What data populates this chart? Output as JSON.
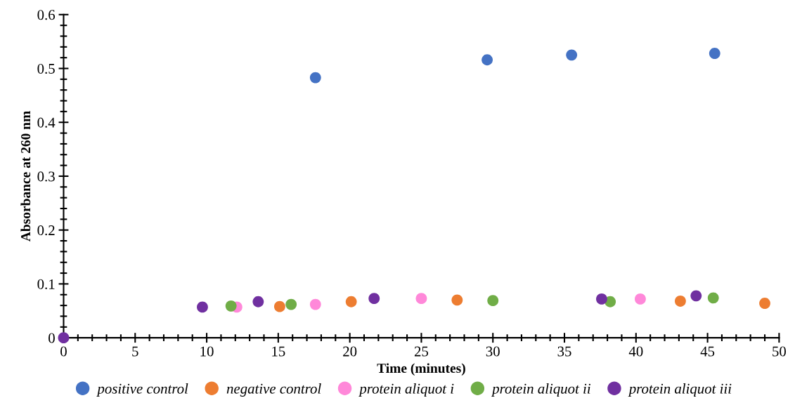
{
  "chart_data": {
    "type": "scatter",
    "xlabel": "Time (minutes)",
    "ylabel": "Absorbance at 260 nm",
    "xlim": [
      0,
      50
    ],
    "xticks": [
      0,
      5,
      10,
      15,
      20,
      25,
      30,
      35,
      40,
      45,
      50
    ],
    "ylim": [
      0,
      0.6
    ],
    "yticks": [
      0,
      0.1,
      0.2,
      0.3,
      0.4,
      0.5,
      0.6
    ],
    "grid": false,
    "legend": "bottom",
    "marker": "circle",
    "series": [
      {
        "name": "positive control",
        "color": "#4472c4",
        "x": [
          17.6,
          29.6,
          35.5,
          45.5
        ],
        "values": [
          0.483,
          0.516,
          0.525,
          0.528
        ]
      },
      {
        "name": "negative control",
        "color": "#ed7d31",
        "x": [
          15.1,
          20.1,
          27.5,
          43.1,
          49.0
        ],
        "values": [
          0.058,
          0.067,
          0.07,
          0.068,
          0.064
        ]
      },
      {
        "name": "protein aliquot i",
        "color": "#ff88d9",
        "x": [
          12.1,
          17.6,
          25.0,
          40.3
        ],
        "values": [
          0.057,
          0.062,
          0.073,
          0.072
        ]
      },
      {
        "name": "protein aliquot ii",
        "color": "#70ad47",
        "x": [
          11.7,
          15.9,
          30.0,
          38.2,
          45.4
        ],
        "values": [
          0.059,
          0.062,
          0.069,
          0.067,
          0.074
        ]
      },
      {
        "name": "protein aliquot iii",
        "color": "#7030a0",
        "x": [
          0,
          9.7,
          13.6,
          21.7,
          37.6,
          44.2
        ],
        "values": [
          0,
          0.057,
          0.067,
          0.073,
          0.072,
          0.078
        ]
      }
    ]
  }
}
